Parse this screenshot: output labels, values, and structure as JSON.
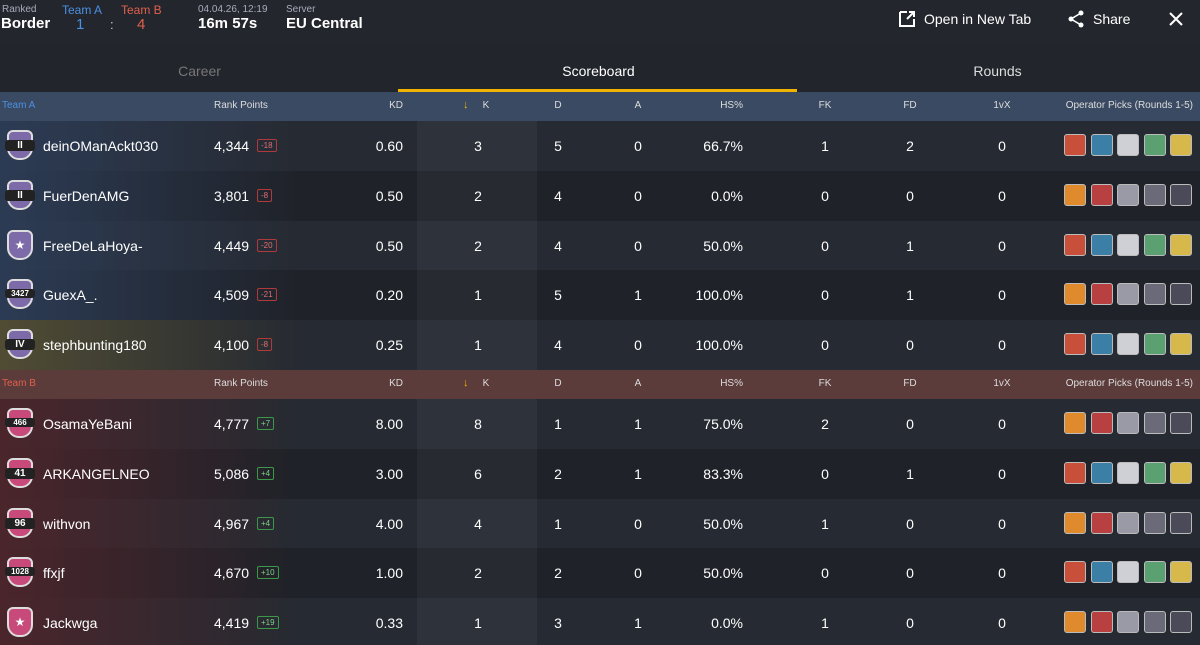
{
  "header": {
    "mode": "Ranked",
    "map": "Border",
    "team_a": {
      "label": "Team A",
      "score": 1
    },
    "separator": ":",
    "team_b": {
      "label": "Team B",
      "score": 4
    },
    "date": "04.04.26, 12:19",
    "duration": "16m 57s",
    "server_label": "Server",
    "server": "EU Central",
    "actions": [
      "Open in New Tab",
      "Share"
    ]
  },
  "tabs": [
    "Career",
    "Scoreboard",
    "Rounds"
  ],
  "teams": [
    {
      "name": "Team A",
      "columns": [
        "Rank Points",
        "KD",
        "K",
        "D",
        "A",
        "HS%",
        "FK",
        "FD",
        "1vX",
        "Operator Picks (Rounds 1-5)"
      ],
      "players": [
        {
          "badge": "II",
          "name": "deinOManAckt030",
          "points": "4,344",
          "delta": "-18",
          "stats": [
            "0.60",
            "3",
            "5",
            "0",
            "66.7%",
            "1",
            "2",
            "0"
          ]
        },
        {
          "badge": "II",
          "name": "FuerDenAMG",
          "points": "3,801",
          "delta": "-8",
          "stats": [
            "0.50",
            "2",
            "4",
            "0",
            "0.0%",
            "0",
            "0",
            "0"
          ]
        },
        {
          "name": "FreeDeLaHoya-",
          "points": "4,449",
          "delta": "-20",
          "stats": [
            "0.50",
            "2",
            "4",
            "0",
            "50.0%",
            "0",
            "1",
            "0"
          ]
        },
        {
          "badge": "3427",
          "name": "GuexA_.",
          "points": "4,509",
          "delta": "-21",
          "stats": [
            "0.20",
            "1",
            "5",
            "1",
            "100.0%",
            "0",
            "1",
            "0"
          ]
        },
        {
          "badge": "IV",
          "name": "stephbunting180",
          "points": "4,100",
          "delta": "-8",
          "stats": [
            "0.25",
            "1",
            "4",
            "0",
            "100.0%",
            "0",
            "0",
            "0"
          ]
        }
      ]
    },
    {
      "name": "Team B",
      "columns": [
        "Rank Points",
        "KD",
        "K",
        "D",
        "A",
        "HS%",
        "FK",
        "FD",
        "1vX",
        "Operator Picks (Rounds 1-5)"
      ],
      "players": [
        {
          "badge": "466",
          "name": "OsamaYeBani",
          "points": "4,777",
          "delta": "+7",
          "stats": [
            "8.00",
            "8",
            "1",
            "1",
            "75.0%",
            "2",
            "0",
            "0"
          ]
        },
        {
          "badge": "41",
          "name": "ARKANGELNEO",
          "points": "5,086",
          "delta": "+4",
          "stats": [
            "3.00",
            "6",
            "2",
            "1",
            "83.3%",
            "0",
            "1",
            "0"
          ]
        },
        {
          "badge": "96",
          "name": "withvon",
          "points": "4,967",
          "delta": "+4",
          "stats": [
            "4.00",
            "4",
            "1",
            "0",
            "50.0%",
            "1",
            "0",
            "0"
          ]
        },
        {
          "badge": "1028",
          "name": "ffxjf",
          "points": "4,670",
          "delta": "+10",
          "stats": [
            "1.00",
            "2",
            "2",
            "0",
            "50.0%",
            "0",
            "0",
            "0"
          ]
        },
        {
          "name": "Jackwga",
          "points": "4,419",
          "delta": "+19",
          "stats": [
            "0.33",
            "1",
            "3",
            "1",
            "0.0%",
            "1",
            "0",
            "0"
          ]
        }
      ]
    }
  ]
}
